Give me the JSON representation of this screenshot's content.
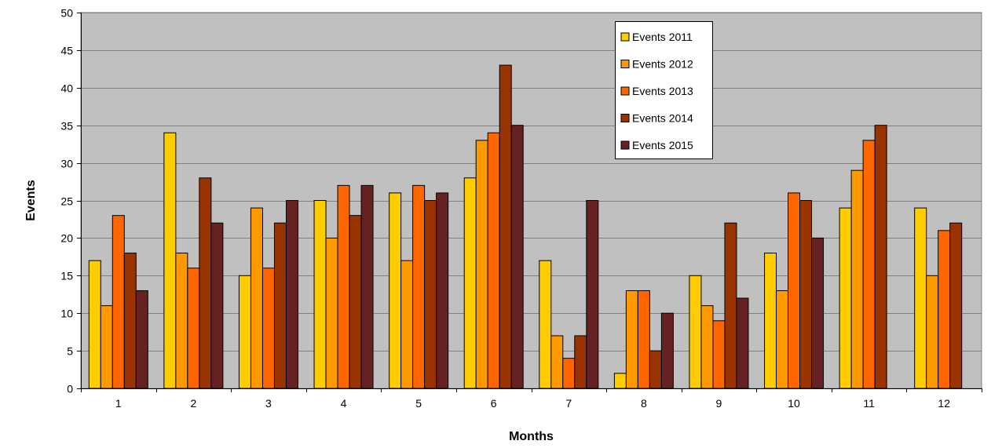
{
  "chart_data": {
    "type": "bar",
    "title": "",
    "xlabel": "Months",
    "ylabel": "Events",
    "ylim": [
      0,
      50
    ],
    "yticks": [
      "0",
      "5",
      "10",
      "15",
      "20",
      "25",
      "30",
      "35",
      "40",
      "45",
      "50"
    ],
    "categories": [
      "1",
      "2",
      "3",
      "4",
      "5",
      "6",
      "7",
      "8",
      "9",
      "10",
      "11",
      "12"
    ],
    "grid": true,
    "legend_position": "top-right",
    "plot_background": "#c0c0c0",
    "series": [
      {
        "name": "Events 2011",
        "color": "#ffcc00",
        "values": [
          17,
          34,
          15,
          25,
          26,
          28,
          17,
          2,
          15,
          18,
          24,
          24
        ]
      },
      {
        "name": "Events 2012",
        "color": "#ff9900",
        "values": [
          11,
          18,
          24,
          20,
          17,
          33,
          7,
          13,
          11,
          13,
          29,
          15
        ]
      },
      {
        "name": "Events 2013",
        "color": "#ff6600",
        "values": [
          23,
          16,
          16,
          27,
          27,
          34,
          4,
          13,
          9,
          26,
          33,
          21
        ]
      },
      {
        "name": "Events 2014",
        "color": "#993300",
        "values": [
          18,
          28,
          22,
          23,
          25,
          43,
          7,
          5,
          22,
          25,
          35,
          22
        ]
      },
      {
        "name": "Events 2015",
        "color": "#662222",
        "values": [
          13,
          22,
          25,
          27,
          26,
          35,
          25,
          10,
          12,
          20,
          null,
          null
        ]
      }
    ]
  }
}
